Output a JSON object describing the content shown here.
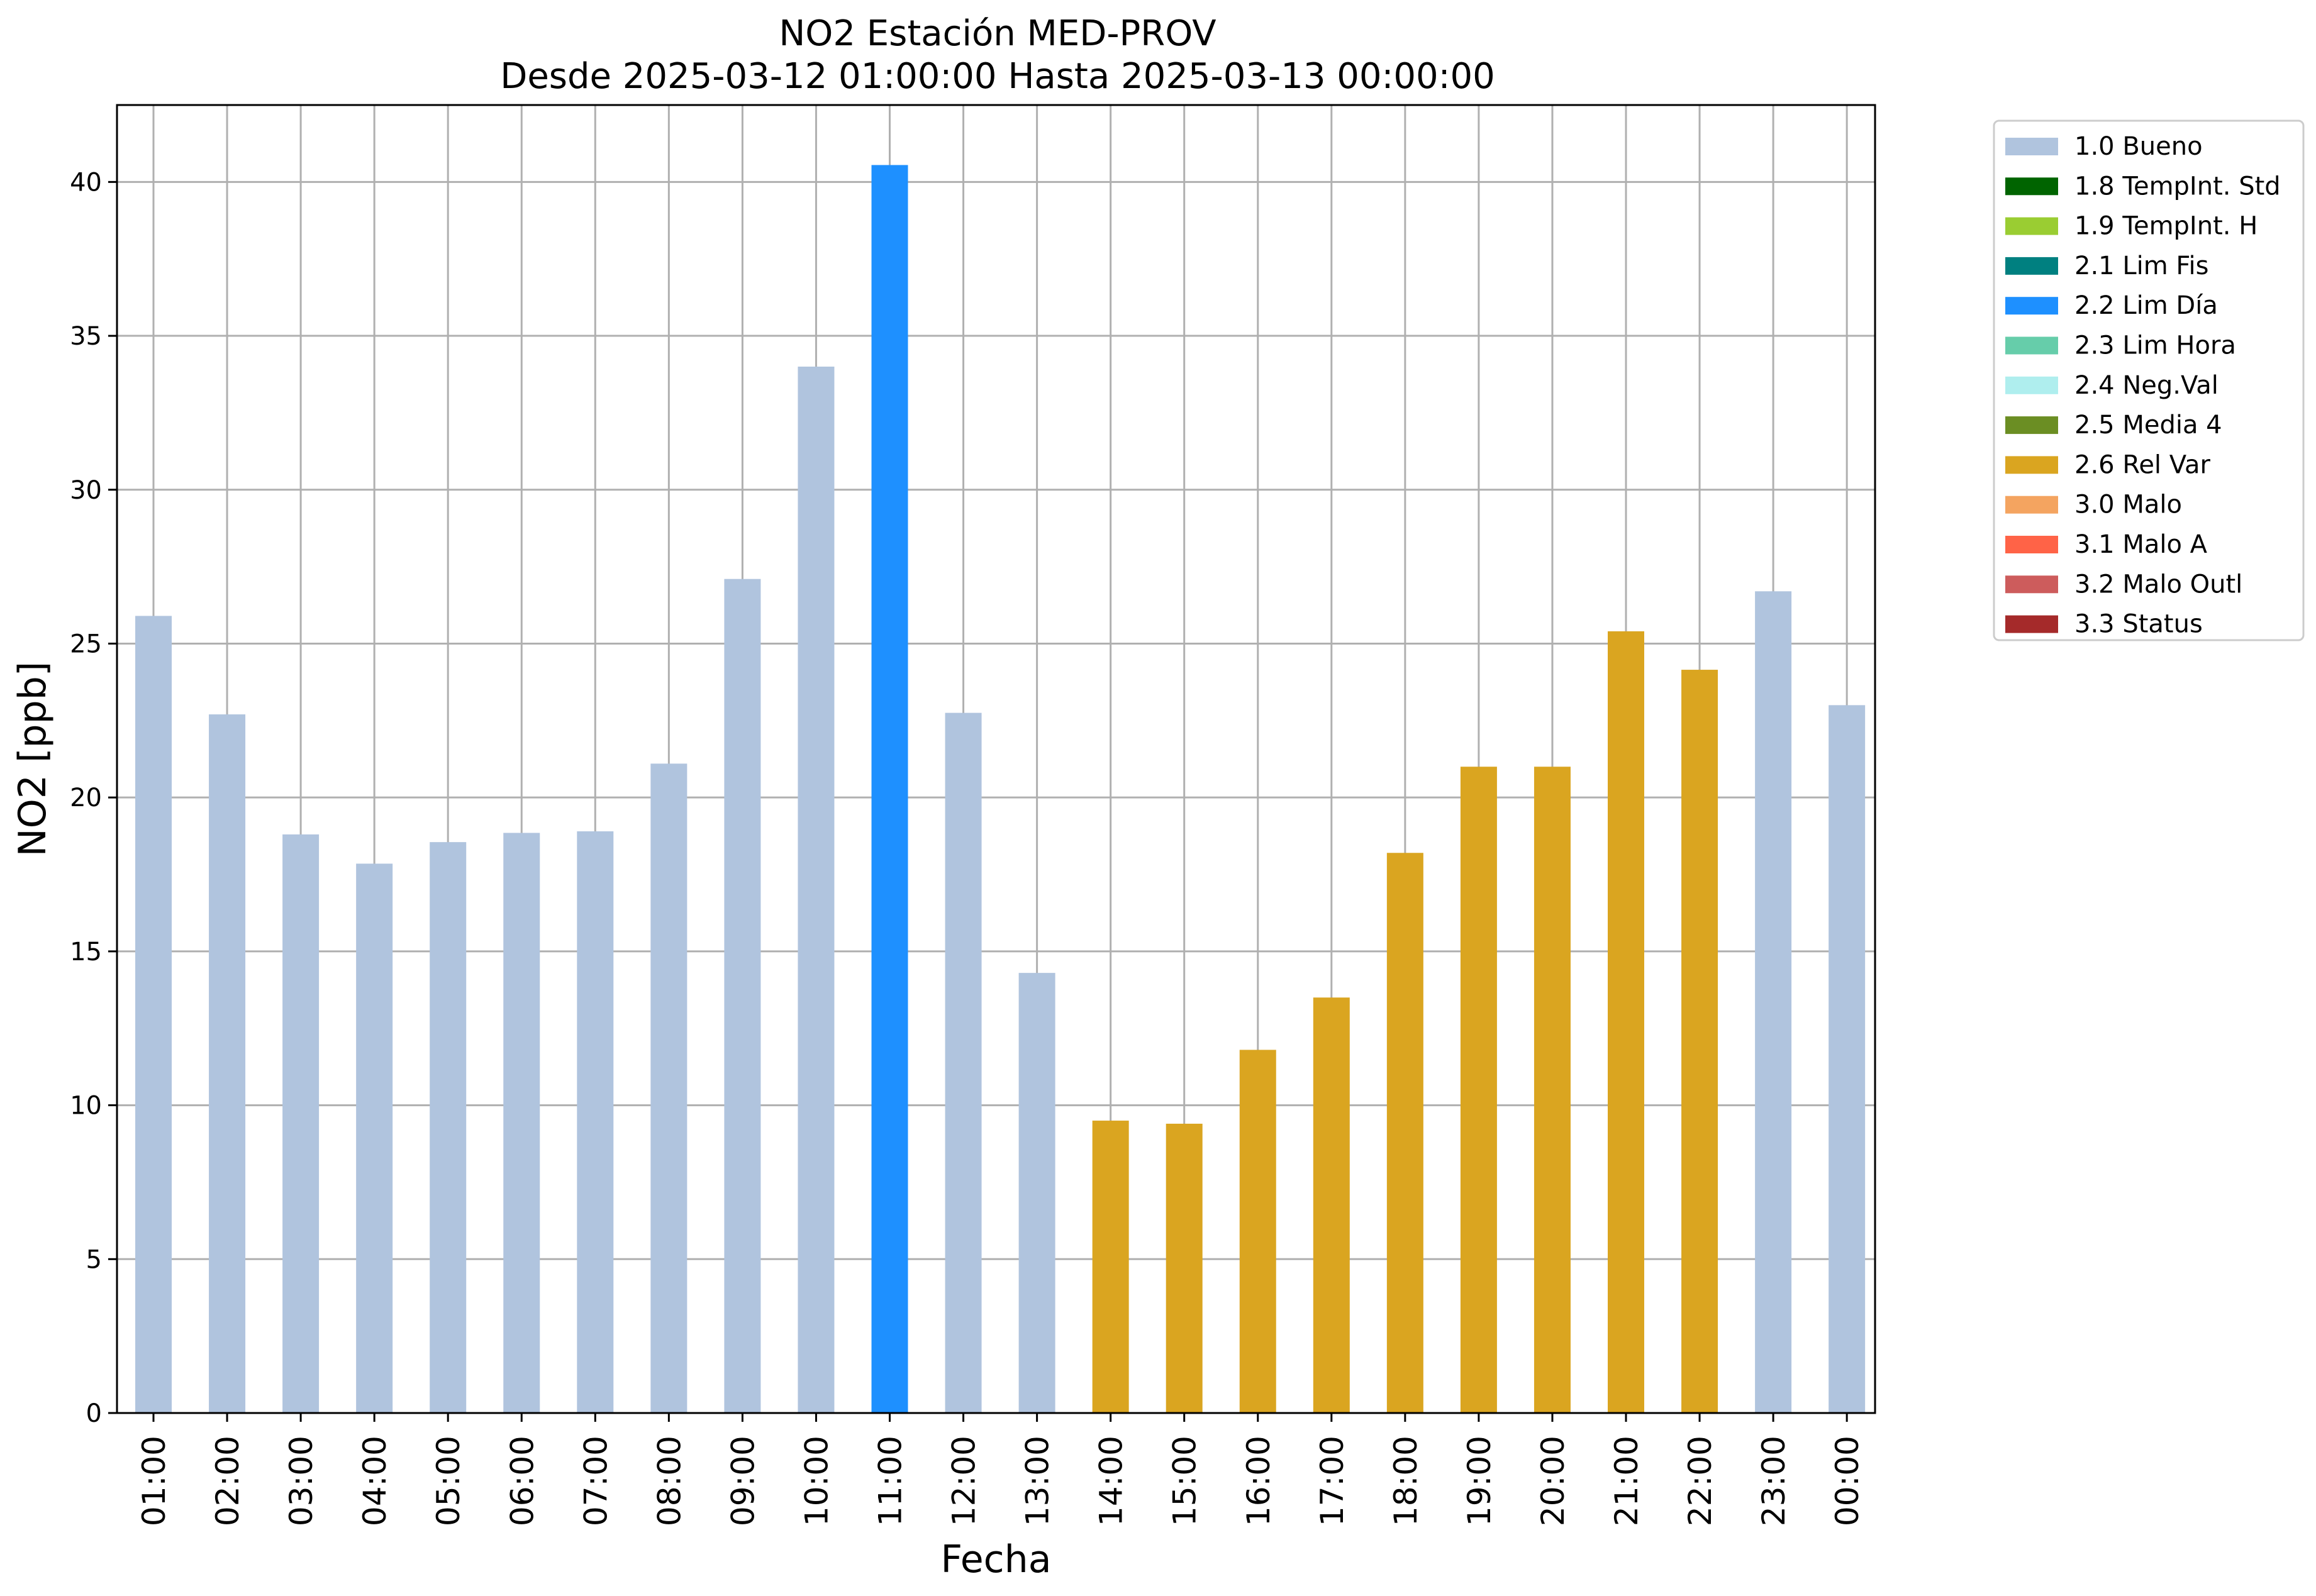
{
  "chart_data": {
    "type": "bar",
    "title": "NO2 Estación MED-PROV",
    "subtitle": "Desde 2025-03-12 01:00:00 Hasta 2025-03-13 00:00:00",
    "xlabel": "Fecha",
    "ylabel": "NO2 [ppb]",
    "ylim": [
      0,
      42.5
    ],
    "yticks": [
      0,
      5,
      10,
      15,
      20,
      25,
      30,
      35,
      40
    ],
    "grid": true,
    "legend_position": "outside-top-right",
    "categories": [
      "01:00",
      "02:00",
      "03:00",
      "04:00",
      "05:00",
      "06:00",
      "07:00",
      "08:00",
      "09:00",
      "10:00",
      "11:00",
      "12:00",
      "13:00",
      "14:00",
      "15:00",
      "16:00",
      "17:00",
      "18:00",
      "19:00",
      "20:00",
      "21:00",
      "22:00",
      "23:00",
      "00:00"
    ],
    "values": [
      25.9,
      22.7,
      18.8,
      17.85,
      18.55,
      18.85,
      18.9,
      21.1,
      27.1,
      34.0,
      40.55,
      22.75,
      14.3,
      9.5,
      9.4,
      11.8,
      13.5,
      18.2,
      21.0,
      21.0,
      25.4,
      24.15,
      26.7,
      23.0
    ],
    "flags": [
      "1.0 Bueno",
      "1.0 Bueno",
      "1.0 Bueno",
      "1.0 Bueno",
      "1.0 Bueno",
      "1.0 Bueno",
      "1.0 Bueno",
      "1.0 Bueno",
      "1.0 Bueno",
      "1.0 Bueno",
      "2.2 Lim Día",
      "1.0 Bueno",
      "1.0 Bueno",
      "2.6 Rel Var",
      "2.6 Rel Var",
      "2.6 Rel Var",
      "2.6 Rel Var",
      "2.6 Rel Var",
      "2.6 Rel Var",
      "2.6 Rel Var",
      "2.6 Rel Var",
      "2.6 Rel Var",
      "1.0 Bueno",
      "1.0 Bueno"
    ],
    "legend": [
      {
        "label": "1.0 Bueno",
        "color": "#b0c4de"
      },
      {
        "label": "1.8 TempInt. Std",
        "color": "#006400"
      },
      {
        "label": "1.9 TempInt. H",
        "color": "#9acd32"
      },
      {
        "label": "2.1 Lim Fis",
        "color": "#008080"
      },
      {
        "label": "2.2 Lim Día",
        "color": "#1e90ff"
      },
      {
        "label": "2.3 Lim Hora",
        "color": "#66cdaa"
      },
      {
        "label": "2.4 Neg.Val",
        "color": "#afeeee"
      },
      {
        "label": "2.5 Media 4",
        "color": "#6b8e23"
      },
      {
        "label": "2.6 Rel Var",
        "color": "#daa520"
      },
      {
        "label": "3.0 Malo",
        "color": "#f4a460"
      },
      {
        "label": "3.1 Malo A",
        "color": "#ff6347"
      },
      {
        "label": "3.2 Malo Outl",
        "color": "#cd5c5c"
      },
      {
        "label": "3.3 Status",
        "color": "#a52a2a"
      }
    ]
  }
}
